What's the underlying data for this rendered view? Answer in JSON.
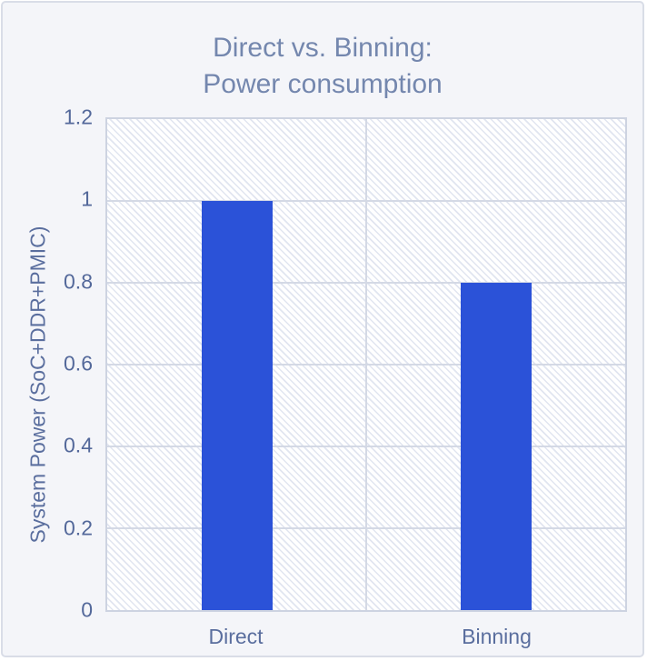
{
  "chart": {
    "title_line1": "Direct vs. Binning:",
    "title_line2": "Power consumption"
  },
  "chart_data": {
    "type": "bar",
    "title": "Direct vs. Binning: Power consumption",
    "categories": [
      "Direct",
      "Binning"
    ],
    "values": [
      1.0,
      0.8
    ],
    "xlabel": "",
    "ylabel": "System Power (SoC+DDR+PMIC)",
    "ylim": [
      0,
      1.2
    ],
    "yticks": [
      0,
      0.2,
      0.4,
      0.6,
      0.8,
      1,
      1.2
    ],
    "ytick_labels": [
      "0",
      "0.2",
      "0.4",
      "0.6",
      "0.8",
      "1",
      "1.2"
    ],
    "grid": true,
    "legend": false,
    "series_name": "System Power"
  },
  "colors": {
    "bar": "#2b52d8",
    "title_text": "#7487ae",
    "axis_text": "#5a6e9e",
    "gridline": "#d4d9e5",
    "plot_border": "#cdd3e1",
    "hatch_line": "#e1e5f0",
    "page_bg": "#f4f5f9",
    "page_border": "#d9dde7"
  }
}
